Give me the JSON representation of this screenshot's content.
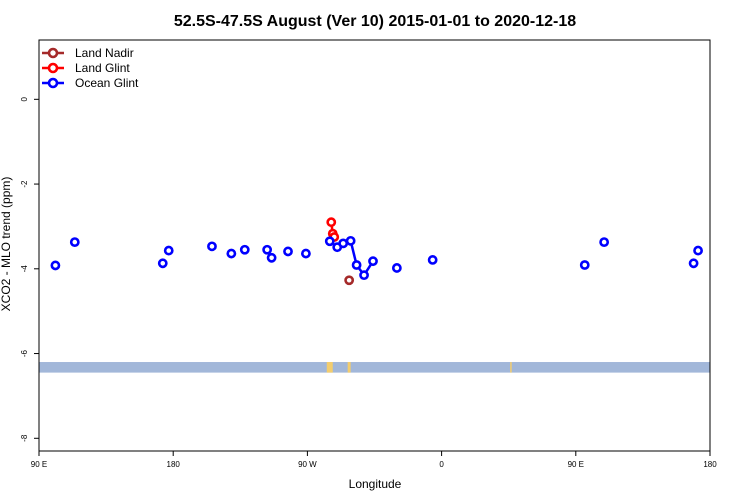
{
  "chart_data": {
    "type": "scatter",
    "title": "52.5S-47.5S August (Ver 10)   2015-01-01 to 2020-12-18",
    "xlabel": "Longitude",
    "ylabel": "XCO2 - MLO trend (ppm)",
    "xlim": [
      90,
      540
    ],
    "ylim": [
      -8.3,
      1.4
    ],
    "x_ticks": [
      {
        "value": 90,
        "label": "90 E"
      },
      {
        "value": 180,
        "label": "180"
      },
      {
        "value": 270,
        "label": "90 W"
      },
      {
        "value": 360,
        "label": "0"
      },
      {
        "value": 450,
        "label": "90 E"
      },
      {
        "value": 540,
        "label": "180"
      }
    ],
    "y_ticks": [
      {
        "value": 0,
        "label": "0"
      },
      {
        "value": -2,
        "label": "-2"
      },
      {
        "value": -4,
        "label": "-4"
      },
      {
        "value": -6,
        "label": "-6"
      },
      {
        "value": -8,
        "label": "-8"
      }
    ],
    "legend_position": "top-left",
    "series": [
      {
        "name": "Land Nadir",
        "color": "#a52a2a",
        "points": [
          [
            298,
            -4.27
          ]
        ],
        "connect_segments": []
      },
      {
        "name": "Land Glint",
        "color": "#ff0000",
        "points": [
          [
            286,
            -2.9
          ],
          [
            287,
            -3.17
          ],
          [
            288,
            -3.25
          ]
        ],
        "connect_segments": [
          [
            0,
            1
          ],
          [
            1,
            2
          ]
        ]
      },
      {
        "name": "Ocean Glint",
        "color": "#0000ff",
        "points": [
          [
            101,
            -3.92
          ],
          [
            114,
            -3.37
          ],
          [
            173,
            -3.87
          ],
          [
            177,
            -3.57
          ],
          [
            206,
            -3.47
          ],
          [
            219,
            -3.64
          ],
          [
            228,
            -3.55
          ],
          [
            243,
            -3.55
          ],
          [
            246,
            -3.74
          ],
          [
            257,
            -3.59
          ],
          [
            269,
            -3.64
          ],
          [
            285,
            -3.35
          ],
          [
            290,
            -3.49
          ],
          [
            294,
            -3.4
          ],
          [
            299,
            -3.34
          ],
          [
            303,
            -3.91
          ],
          [
            308,
            -4.15
          ],
          [
            314,
            -3.82
          ],
          [
            330,
            -3.98
          ],
          [
            354,
            -3.79
          ],
          [
            456,
            -3.91
          ],
          [
            469,
            -3.37
          ],
          [
            529,
            -3.87
          ],
          [
            532,
            -3.57
          ]
        ],
        "connect_segments": [
          [
            11,
            12
          ],
          [
            12,
            13
          ],
          [
            13,
            14
          ],
          [
            14,
            15
          ],
          [
            15,
            16
          ],
          [
            16,
            17
          ]
        ]
      }
    ],
    "map_strip": {
      "y_top": -6.2,
      "y_bottom": -6.45,
      "ocean_color": "#a2b7d9",
      "land_color": "#f3cd6e",
      "land_spans": [
        [
          283,
          287
        ],
        [
          297,
          299
        ],
        [
          406,
          407
        ]
      ]
    }
  }
}
